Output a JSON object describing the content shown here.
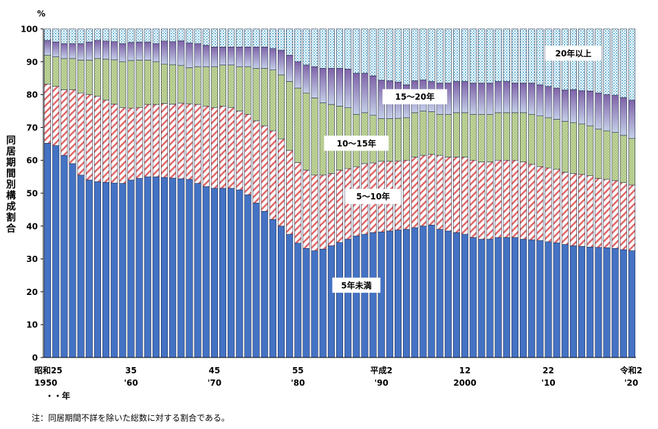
{
  "chart_data": {
    "type": "bar",
    "stacked": true,
    "y_unit": "%",
    "ylabel": "同居期間別構成割合",
    "ylim": [
      0,
      100
    ],
    "y_ticks": [
      0,
      10,
      20,
      30,
      40,
      50,
      60,
      70,
      80,
      90,
      100
    ],
    "x_suffix": "・・年",
    "note": "注：同居期間不詳を除いた総数に対する割合である。",
    "x_range": [
      1950,
      2020
    ],
    "x_tick_labels": [
      {
        "x": 1950,
        "lines": [
          "昭和25",
          "1950"
        ]
      },
      {
        "x": 1960,
        "lines": [
          "35",
          "'60"
        ]
      },
      {
        "x": 1970,
        "lines": [
          "45",
          "'70"
        ]
      },
      {
        "x": 1980,
        "lines": [
          "55",
          "'80"
        ]
      },
      {
        "x": 1990,
        "lines": [
          "平成2",
          "'90"
        ]
      },
      {
        "x": 2000,
        "lines": [
          "12",
          "2000"
        ]
      },
      {
        "x": 2010,
        "lines": [
          "22",
          "'10"
        ]
      },
      {
        "x": 2020,
        "lines": [
          "令和2",
          "'20"
        ]
      }
    ],
    "series": [
      {
        "name": "5年未満",
        "color": "#4472c4",
        "values": [
          65.2,
          64.5,
          61.5,
          59.0,
          55.5,
          54.0,
          53.5,
          53.3,
          53.1,
          53.0,
          54.0,
          54.5,
          55.0,
          55.0,
          54.8,
          54.6,
          54.4,
          54.2,
          53.0,
          52.0,
          51.5,
          51.5,
          51.5,
          51.0,
          49.5,
          47.0,
          44.5,
          42.0,
          40.0,
          37.5,
          34.8,
          33.2,
          32.5,
          33.0,
          34.0,
          35.0,
          36.0,
          37.0,
          37.5,
          38.0,
          38.2,
          38.5,
          38.8,
          39.0,
          39.5,
          40.0,
          40.3,
          39.0,
          38.5,
          38.0,
          37.5,
          36.5,
          36.0,
          36.0,
          36.5,
          36.5,
          36.5,
          36.0,
          35.8,
          35.6,
          35.2,
          34.9,
          34.4,
          34.0,
          33.8,
          33.6,
          33.5,
          33.4,
          33.2,
          32.8,
          32.5
        ]
      },
      {
        "name": "5～10年",
        "color": "#e46c6c",
        "values": [
          18.0,
          18.0,
          20.0,
          22.5,
          25.0,
          26.0,
          26.0,
          25.0,
          24.0,
          23.0,
          21.9,
          21.5,
          22.0,
          22.0,
          22.5,
          22.5,
          23.0,
          23.0,
          24.0,
          24.5,
          24.5,
          25.0,
          24.5,
          24.0,
          24.5,
          25.0,
          26.0,
          27.0,
          26.5,
          25.5,
          24.5,
          23.8,
          23.0,
          22.5,
          22.0,
          22.0,
          21.5,
          21.0,
          21.5,
          21.2,
          21.5,
          21.2,
          21.0,
          21.0,
          21.5,
          21.5,
          21.5,
          22.5,
          22.5,
          23.0,
          23.5,
          23.5,
          23.5,
          23.5,
          23.5,
          23.5,
          23.5,
          23.5,
          23.0,
          22.5,
          22.5,
          22.4,
          22.0,
          22.0,
          21.9,
          21.7,
          21.0,
          20.8,
          20.6,
          20.4,
          20.0
        ]
      },
      {
        "name": "10～15年",
        "color": "#c3d69b",
        "values": [
          8.8,
          9.0,
          9.5,
          9.5,
          10.0,
          10.5,
          11.5,
          12.5,
          13.5,
          14.0,
          14.5,
          14.5,
          13.5,
          13.0,
          12.0,
          12.0,
          11.5,
          11.0,
          11.5,
          12.0,
          12.5,
          12.5,
          13.0,
          13.5,
          14.5,
          16.0,
          17.5,
          18.5,
          19.5,
          21.0,
          22.7,
          23.5,
          23.5,
          22.0,
          21.0,
          19.5,
          18.5,
          16.0,
          15.5,
          14.5,
          13.0,
          13.0,
          13.0,
          13.0,
          13.5,
          13.5,
          13.0,
          12.5,
          13.0,
          13.5,
          13.5,
          14.0,
          14.5,
          14.5,
          14.5,
          14.5,
          14.5,
          15.0,
          15.2,
          15.4,
          15.3,
          15.2,
          15.5,
          15.5,
          15.4,
          15.2,
          15.0,
          14.8,
          14.7,
          14.4,
          14.2
        ]
      },
      {
        "name": "15～20年",
        "color": "#8064a2",
        "values": [
          4.5,
          4.5,
          4.5,
          4.5,
          5.0,
          5.5,
          5.5,
          5.5,
          5.5,
          5.5,
          5.5,
          5.5,
          5.5,
          5.5,
          7.0,
          7.0,
          7.5,
          7.5,
          7.0,
          6.5,
          6.0,
          5.5,
          5.5,
          6.0,
          6.0,
          6.5,
          6.5,
          6.5,
          7.5,
          8.0,
          8.0,
          8.5,
          9.5,
          10.5,
          11.0,
          11.5,
          11.8,
          12.5,
          12.0,
          12.0,
          11.7,
          11.5,
          11.0,
          10.0,
          9.7,
          9.5,
          9.2,
          9.5,
          9.5,
          9.5,
          9.5,
          9.5,
          9.5,
          9.5,
          9.5,
          9.5,
          9.0,
          9.0,
          9.5,
          9.5,
          9.5,
          9.5,
          9.5,
          10.0,
          10.1,
          10.6,
          11.0,
          11.0,
          11.3,
          11.5,
          11.6
        ]
      },
      {
        "name": "20年以上",
        "color": "#b7dee8",
        "values": [
          3.5,
          4.0,
          4.5,
          4.5,
          4.5,
          4.0,
          3.5,
          3.7,
          3.9,
          4.5,
          4.1,
          4.0,
          4.0,
          4.5,
          3.7,
          3.9,
          3.6,
          4.3,
          4.5,
          5.0,
          5.5,
          5.5,
          5.5,
          5.5,
          5.5,
          5.5,
          5.5,
          6.0,
          6.5,
          8.0,
          10.0,
          11.0,
          11.5,
          12.0,
          12.0,
          12.0,
          12.2,
          13.5,
          13.5,
          14.3,
          15.6,
          15.8,
          16.2,
          17.0,
          15.8,
          15.5,
          16.0,
          16.5,
          16.5,
          16.0,
          16.0,
          16.5,
          16.5,
          16.5,
          16.0,
          16.0,
          16.5,
          16.5,
          16.5,
          17.0,
          17.5,
          18.0,
          18.6,
          18.5,
          18.8,
          18.9,
          19.5,
          20.0,
          20.2,
          20.9,
          21.7
        ]
      }
    ],
    "segment_labels": [
      {
        "series": "5年未満",
        "text": "5年未満"
      },
      {
        "series": "5～10年",
        "text": "5～10年"
      },
      {
        "series": "10～15年",
        "text": "10～15年"
      },
      {
        "series": "15～20年",
        "text": "15～20年"
      },
      {
        "series": "20年以上",
        "text": "20年以上"
      }
    ]
  }
}
